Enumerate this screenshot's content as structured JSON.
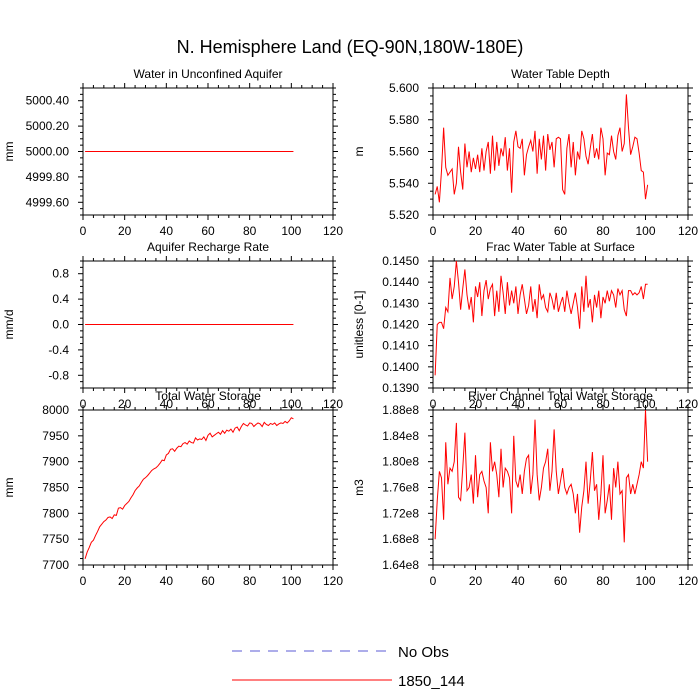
{
  "figure": {
    "title": "N. Hemisphere Land (EQ-90N,180W-180E)"
  },
  "legend": {
    "entries": [
      {
        "label": "No Obs",
        "color": "#5b5bd6",
        "style": "dashed"
      },
      {
        "label": "1850_144",
        "color": "#ff0000",
        "style": "solid"
      }
    ]
  },
  "chart_data": [
    {
      "type": "line",
      "title": "Water in Unconfined Aquifer",
      "xlabel": "",
      "ylabel": "mm",
      "xlim": [
        0,
        120
      ],
      "ylim": [
        4999.5,
        5000.5
      ],
      "xticks": [
        0,
        20,
        40,
        60,
        80,
        100,
        120
      ],
      "yticks": [
        4999.6,
        4999.8,
        5000.0,
        5000.2,
        5000.4
      ],
      "yticklabels": [
        "4999.60",
        "4999.80",
        "5000.00",
        "5000.20",
        "5000.40"
      ],
      "series": [
        {
          "name": "1850_144",
          "color": "#ff0000",
          "x_start": 1,
          "x_step": 1,
          "values": [
            5000,
            5000,
            5000,
            5000,
            5000,
            5000,
            5000,
            5000,
            5000,
            5000,
            5000,
            5000,
            5000,
            5000,
            5000,
            5000,
            5000,
            5000,
            5000,
            5000,
            5000,
            5000,
            5000,
            5000,
            5000,
            5000,
            5000,
            5000,
            5000,
            5000,
            5000,
            5000,
            5000,
            5000,
            5000,
            5000,
            5000,
            5000,
            5000,
            5000,
            5000,
            5000,
            5000,
            5000,
            5000,
            5000,
            5000,
            5000,
            5000,
            5000,
            5000,
            5000,
            5000,
            5000,
            5000,
            5000,
            5000,
            5000,
            5000,
            5000,
            5000,
            5000,
            5000,
            5000,
            5000,
            5000,
            5000,
            5000,
            5000,
            5000,
            5000,
            5000,
            5000,
            5000,
            5000,
            5000,
            5000,
            5000,
            5000,
            5000,
            5000,
            5000,
            5000,
            5000,
            5000,
            5000,
            5000,
            5000,
            5000,
            5000,
            5000,
            5000,
            5000,
            5000,
            5000,
            5000,
            5000,
            5000,
            5000,
            5000,
            5000
          ]
        }
      ]
    },
    {
      "type": "line",
      "title": "Water Table Depth",
      "xlabel": "",
      "ylabel": "m",
      "xlim": [
        0,
        120
      ],
      "ylim": [
        5.52,
        5.6
      ],
      "xticks": [
        0,
        20,
        40,
        60,
        80,
        100,
        120
      ],
      "yticks": [
        5.52,
        5.54,
        5.56,
        5.58,
        5.6
      ],
      "yticklabels": [
        "5.520",
        "5.540",
        "5.560",
        "5.580",
        "5.600"
      ],
      "series": [
        {
          "name": "1850_144",
          "color": "#ff0000",
          "x_start": 1,
          "x_step": 1,
          "values": [
            5.533,
            5.538,
            5.528,
            5.548,
            5.575,
            5.55,
            5.545,
            5.547,
            5.549,
            5.533,
            5.54,
            5.563,
            5.547,
            5.536,
            5.565,
            5.55,
            5.56,
            5.547,
            5.556,
            5.549,
            5.558,
            5.547,
            5.562,
            5.548,
            5.56,
            5.566,
            5.546,
            5.57,
            5.548,
            5.566,
            5.551,
            5.562,
            5.557,
            5.569,
            5.548,
            5.562,
            5.534,
            5.566,
            5.573,
            5.563,
            5.562,
            5.568,
            5.545,
            5.558,
            5.563,
            5.567,
            5.56,
            5.573,
            5.546,
            5.568,
            5.555,
            5.57,
            5.548,
            5.571,
            5.561,
            5.566,
            5.55,
            5.568,
            5.569,
            5.568,
            5.536,
            5.533,
            5.562,
            5.571,
            5.55,
            5.566,
            5.545,
            5.56,
            5.555,
            5.573,
            5.568,
            5.557,
            5.552,
            5.562,
            5.571,
            5.556,
            5.562,
            5.555,
            5.575,
            5.568,
            5.545,
            5.559,
            5.558,
            5.57,
            5.56,
            5.555,
            5.57,
            5.575,
            5.56,
            5.565,
            5.596,
            5.575,
            5.558,
            5.563,
            5.569,
            5.568,
            5.559,
            5.548,
            5.547,
            5.53,
            5.539
          ]
        }
      ]
    },
    {
      "type": "line",
      "title": "Aquifer Recharge Rate",
      "xlabel": "",
      "ylabel": "mm/d",
      "xlim": [
        0,
        120
      ],
      "ylim": [
        -1.0,
        1.0
      ],
      "xticks": [
        0,
        20,
        40,
        60,
        80,
        100,
        120
      ],
      "yticks": [
        -0.8,
        -0.4,
        0.0,
        0.4,
        0.8
      ],
      "yticklabels": [
        "-0.8",
        "-0.4",
        "0.0",
        "0.4",
        "0.8"
      ],
      "series": [
        {
          "name": "1850_144",
          "color": "#ff0000",
          "x_start": 1,
          "x_step": 1,
          "values": [
            0,
            0,
            0,
            0,
            0,
            0,
            0,
            0,
            0,
            0,
            0,
            0,
            0,
            0,
            0,
            0,
            0,
            0,
            0,
            0,
            0,
            0,
            0,
            0,
            0,
            0,
            0,
            0,
            0,
            0,
            0,
            0,
            0,
            0,
            0,
            0,
            0,
            0,
            0,
            0,
            0,
            0,
            0,
            0,
            0,
            0,
            0,
            0,
            0,
            0,
            0,
            0,
            0,
            0,
            0,
            0,
            0,
            0,
            0,
            0,
            0,
            0,
            0,
            0,
            0,
            0,
            0,
            0,
            0,
            0,
            0,
            0,
            0,
            0,
            0,
            0,
            0,
            0,
            0,
            0,
            0,
            0,
            0,
            0,
            0,
            0,
            0,
            0,
            0,
            0,
            0,
            0,
            0,
            0,
            0,
            0,
            0,
            0,
            0,
            0,
            0
          ]
        }
      ]
    },
    {
      "type": "line",
      "title": "Frac Water Table at Surface",
      "xlabel": "",
      "ylabel": "unitless [0-1]",
      "xlim": [
        0,
        120
      ],
      "ylim": [
        0.139,
        0.145
      ],
      "xticks": [
        0,
        20,
        40,
        60,
        80,
        100,
        120
      ],
      "yticks": [
        0.139,
        0.14,
        0.141,
        0.142,
        0.143,
        0.144,
        0.145
      ],
      "yticklabels": [
        "0.1390",
        "0.1400",
        "0.1410",
        "0.1420",
        "0.1430",
        "0.1440",
        "0.1450"
      ],
      "series": [
        {
          "name": "1850_144",
          "color": "#ff0000",
          "x_start": 1,
          "x_step": 1,
          "values": [
            0.1396,
            0.142,
            0.1421,
            0.1421,
            0.1418,
            0.1428,
            0.1426,
            0.1442,
            0.1432,
            0.1438,
            0.145,
            0.144,
            0.1427,
            0.1437,
            0.1446,
            0.1434,
            0.1427,
            0.1433,
            0.1421,
            0.1438,
            0.1433,
            0.144,
            0.1424,
            0.1436,
            0.1441,
            0.1432,
            0.1437,
            0.1439,
            0.1424,
            0.1436,
            0.1426,
            0.1443,
            0.1435,
            0.1425,
            0.144,
            0.1429,
            0.1436,
            0.143,
            0.1438,
            0.1425,
            0.1434,
            0.1439,
            0.1432,
            0.1425,
            0.1429,
            0.1438,
            0.1426,
            0.1432,
            0.1423,
            0.1439,
            0.1432,
            0.1434,
            0.1428,
            0.1426,
            0.1435,
            0.1432,
            0.1427,
            0.1435,
            0.1426,
            0.143,
            0.1433,
            0.1426,
            0.1436,
            0.143,
            0.1425,
            0.143,
            0.1435,
            0.1428,
            0.1418,
            0.1438,
            0.1426,
            0.1443,
            0.1428,
            0.1432,
            0.1421,
            0.1434,
            0.1428,
            0.1436,
            0.1423,
            0.1433,
            0.143,
            0.1436,
            0.1431,
            0.1436,
            0.1434,
            0.1428,
            0.1437,
            0.1434,
            0.1436,
            0.1427,
            0.1424,
            0.1436,
            0.1436,
            0.1434,
            0.1435,
            0.1434,
            0.1435,
            0.1438,
            0.1432,
            0.1439,
            0.1439
          ]
        }
      ]
    },
    {
      "type": "line",
      "title": "Total Water Storage",
      "xlabel": "",
      "ylabel": "mm",
      "xlim": [
        0,
        120
      ],
      "ylim": [
        7700,
        8000
      ],
      "xticks": [
        0,
        20,
        40,
        60,
        80,
        100,
        120
      ],
      "yticks": [
        7700,
        7750,
        7800,
        7850,
        7900,
        7950,
        8000
      ],
      "yticklabels": [
        "7700",
        "7750",
        "7800",
        "7850",
        "7900",
        "7950",
        "8000"
      ],
      "series": [
        {
          "name": "1850_144",
          "color": "#ff0000",
          "x_start": 1,
          "x_step": 1,
          "values": [
            7712,
            7725,
            7734,
            7744,
            7748,
            7757,
            7765,
            7774,
            7779,
            7784,
            7787,
            7792,
            7793,
            7790,
            7797,
            7796,
            7810,
            7811,
            7808,
            7815,
            7819,
            7823,
            7830,
            7836,
            7844,
            7849,
            7853,
            7860,
            7866,
            7869,
            7873,
            7878,
            7883,
            7886,
            7888,
            7892,
            7897,
            7903,
            7902,
            7913,
            7916,
            7924,
            7925,
            7920,
            7926,
            7930,
            7929,
            7935,
            7937,
            7934,
            7940,
            7937,
            7936,
            7946,
            7942,
            7944,
            7943,
            7948,
            7941,
            7951,
            7955,
            7948,
            7951,
            7954,
            7957,
            7953,
            7960,
            7955,
            7961,
            7959,
            7963,
            7957,
            7965,
            7967,
            7960,
            7968,
            7974,
            7971,
            7969,
            7975,
            7974,
            7968,
            7972,
            7975,
            7973,
            7968,
            7976,
            7972,
            7970,
            7974,
            7972,
            7975,
            7970,
            7973,
            7975,
            7974,
            7978,
            7975,
            7979,
            7985,
            7983
          ]
        }
      ]
    },
    {
      "type": "line",
      "title": "River Channel Total Water Storage",
      "xlabel": "",
      "ylabel": "m3",
      "xlim": [
        0,
        120
      ],
      "ylim": [
        164000000,
        188000000
      ],
      "xticks": [
        0,
        20,
        40,
        60,
        80,
        100,
        120
      ],
      "yticks": [
        164000000,
        168000000,
        172000000,
        176000000,
        180000000,
        184000000,
        188000000
      ],
      "yticklabels": [
        "1.64e8",
        "1.68e8",
        "1.72e8",
        "1.76e8",
        "1.80e8",
        "1.84e8",
        "1.88e8"
      ],
      "series": [
        {
          "name": "1850_144",
          "color": "#ff0000",
          "x_start": 1,
          "x_step": 1,
          "values": [
            168000000,
            174000000,
            178500000,
            177500000,
            171000000,
            183000000,
            176500000,
            179000000,
            178500000,
            180000000,
            186000000,
            174500000,
            174000000,
            179000000,
            184500000,
            175500000,
            176000000,
            178000000,
            173500000,
            181000000,
            174500000,
            178000000,
            178500000,
            177000000,
            176000000,
            172000000,
            183000000,
            178500000,
            180000000,
            178000000,
            174500000,
            182000000,
            176000000,
            179000000,
            178500000,
            177500000,
            172000000,
            184000000,
            177000000,
            176000000,
            178000000,
            175000000,
            178500000,
            180500000,
            181000000,
            175000000,
            178000000,
            186500000,
            178000000,
            174000000,
            176000000,
            179000000,
            180000000,
            182000000,
            175500000,
            178500000,
            185000000,
            178500000,
            175000000,
            177000000,
            179000000,
            176000000,
            175000000,
            176000000,
            176500000,
            175000000,
            172000000,
            175000000,
            169000000,
            173000000,
            175500000,
            180000000,
            173500000,
            177000000,
            181500000,
            175500000,
            176500000,
            171000000,
            175000000,
            181000000,
            172000000,
            174000000,
            176500000,
            171000000,
            179000000,
            176000000,
            180000000,
            175000000,
            175500000,
            167500000,
            177500000,
            178000000,
            175000000,
            176500000,
            175000000,
            176500000,
            178000000,
            180000000,
            179000000,
            188000000,
            180000000
          ]
        }
      ]
    }
  ]
}
